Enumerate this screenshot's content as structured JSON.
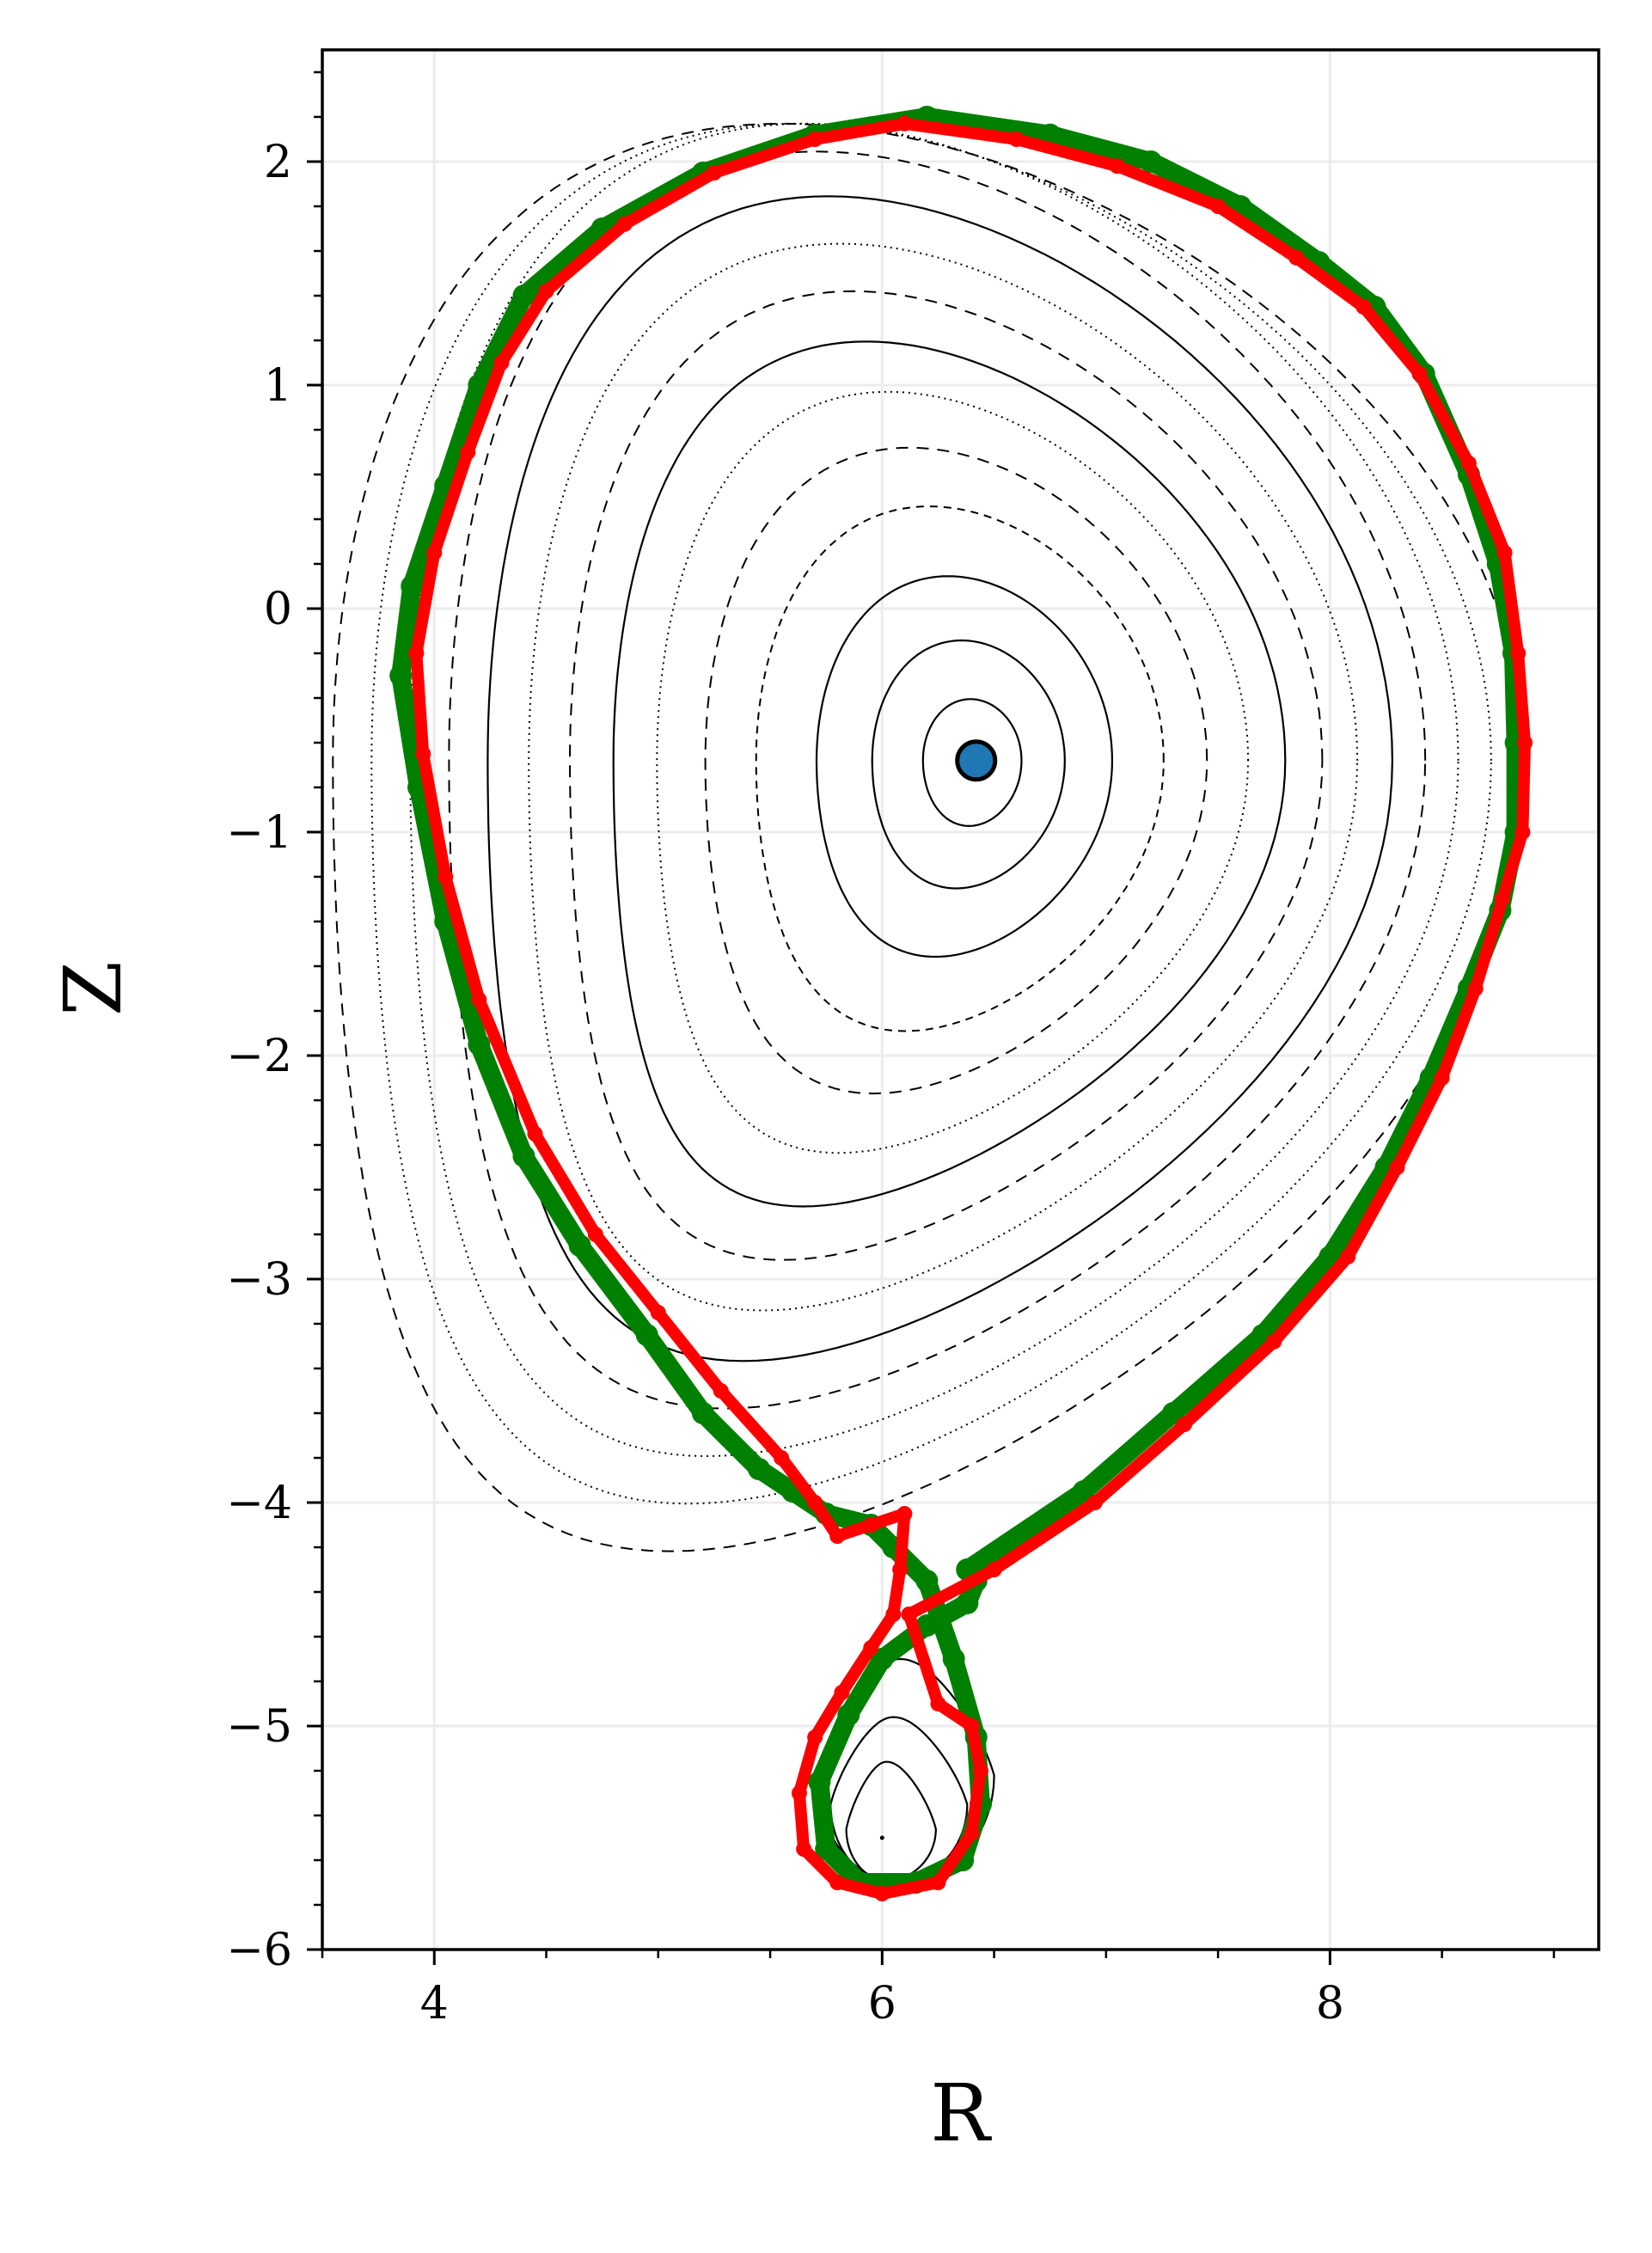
{
  "chart_data": {
    "type": "scatter",
    "title": "",
    "xlabel": "R",
    "ylabel": "Z",
    "xlim": [
      3.5,
      9.2
    ],
    "ylim": [
      -6.0,
      2.5
    ],
    "grid": true,
    "x_ticks": [
      4,
      6,
      8
    ],
    "y_ticks": [
      2,
      1,
      0,
      -1,
      -2,
      -3,
      -4,
      -5,
      -6
    ],
    "x_tick_labels": [
      "4",
      "6",
      "8"
    ],
    "y_tick_labels": [
      "2",
      "1",
      "0",
      "−1",
      "−2",
      "−3",
      "−4",
      "−5",
      "−6"
    ],
    "magnetic_axis": {
      "R": 6.42,
      "Z": -0.68,
      "color": "#1f77b4"
    },
    "main_surfaces": [
      {
        "a": 0.22,
        "style": "solid"
      },
      {
        "a": 0.43,
        "style": "solid"
      },
      {
        "a": 0.66,
        "style": "solid"
      },
      {
        "a": 0.91,
        "style": "dashed-fine"
      },
      {
        "a": 1.12,
        "style": "dashed"
      },
      {
        "a": 1.32,
        "style": "dotted"
      },
      {
        "a": 1.5,
        "style": "solid"
      },
      {
        "a": 1.68,
        "style": "dashed"
      },
      {
        "a": 1.85,
        "style": "dotted"
      },
      {
        "a": 2.02,
        "style": "solid"
      },
      {
        "a": 2.18,
        "style": "dashed"
      },
      {
        "a": 2.34,
        "style": "dotted"
      },
      {
        "a": 2.5,
        "style": "dotted"
      },
      {
        "a": 2.66,
        "style": "dashed"
      }
    ],
    "island_axis": {
      "R": 6.0,
      "Z": -5.5
    },
    "island_surfaces": [
      {
        "R0": 6.02,
        "Z0": -5.46,
        "a_left": 0.18,
        "a_right": 0.22,
        "up": 0.3,
        "down": 0.23
      },
      {
        "R0": 6.05,
        "Z0": -5.35,
        "a_left": 0.28,
        "a_right": 0.33,
        "up": 0.39,
        "down": 0.35
      },
      {
        "R0": 6.08,
        "Z0": -5.22,
        "a_left": 0.37,
        "a_right": 0.42,
        "up": 0.52,
        "down": 0.48
      }
    ],
    "series": [
      {
        "color": "#008000",
        "points": [
          [
            6.38,
            -4.3
          ],
          [
            6.9,
            -3.95
          ],
          [
            7.3,
            -3.6
          ],
          [
            7.7,
            -3.25
          ],
          [
            8.0,
            -2.9
          ],
          [
            8.25,
            -2.5
          ],
          [
            8.45,
            -2.1
          ],
          [
            8.62,
            -1.7
          ],
          [
            8.76,
            -1.35
          ],
          [
            8.83,
            -1.0
          ],
          [
            8.83,
            -0.6
          ],
          [
            8.82,
            -0.2
          ],
          [
            8.75,
            0.2
          ],
          [
            8.62,
            0.6
          ],
          [
            8.42,
            1.05
          ],
          [
            8.2,
            1.35
          ],
          [
            7.95,
            1.55
          ],
          [
            7.6,
            1.8
          ],
          [
            7.2,
            2.0
          ],
          [
            6.75,
            2.12
          ],
          [
            6.2,
            2.2
          ],
          [
            5.7,
            2.12
          ],
          [
            5.2,
            1.95
          ],
          [
            4.75,
            1.7
          ],
          [
            4.4,
            1.4
          ],
          [
            4.2,
            1.0
          ],
          [
            4.05,
            0.55
          ],
          [
            3.9,
            0.1
          ],
          [
            3.85,
            -0.3
          ],
          [
            3.93,
            -0.8
          ],
          [
            4.05,
            -1.4
          ],
          [
            4.2,
            -1.95
          ],
          [
            4.4,
            -2.45
          ],
          [
            4.65,
            -2.85
          ],
          [
            4.95,
            -3.25
          ],
          [
            5.2,
            -3.6
          ],
          [
            5.45,
            -3.85
          ],
          [
            5.6,
            -3.95
          ],
          [
            5.75,
            -4.05
          ],
          [
            5.95,
            -4.1
          ],
          [
            6.05,
            -4.2
          ],
          [
            6.2,
            -4.35
          ],
          [
            6.32,
            -4.7
          ],
          [
            6.42,
            -5.05
          ],
          [
            6.44,
            -5.35
          ],
          [
            6.36,
            -5.6
          ],
          [
            6.15,
            -5.7
          ],
          [
            5.9,
            -5.7
          ],
          [
            5.75,
            -5.55
          ],
          [
            5.72,
            -5.25
          ],
          [
            5.85,
            -4.95
          ],
          [
            6.0,
            -4.7
          ],
          [
            6.2,
            -4.55
          ],
          [
            6.38,
            -4.45
          ],
          [
            6.42,
            -4.35
          ],
          [
            6.38,
            -4.3
          ]
        ]
      },
      {
        "color": "#ff0000",
        "points": [
          [
            6.12,
            -4.5
          ],
          [
            6.5,
            -4.3
          ],
          [
            6.95,
            -4.0
          ],
          [
            7.35,
            -3.65
          ],
          [
            7.75,
            -3.28
          ],
          [
            8.08,
            -2.9
          ],
          [
            8.3,
            -2.5
          ],
          [
            8.5,
            -2.1
          ],
          [
            8.65,
            -1.7
          ],
          [
            8.77,
            -1.3
          ],
          [
            8.86,
            -1.0
          ],
          [
            8.87,
            -0.6
          ],
          [
            8.84,
            -0.2
          ],
          [
            8.78,
            0.25
          ],
          [
            8.62,
            0.65
          ],
          [
            8.4,
            1.05
          ],
          [
            8.15,
            1.35
          ],
          [
            7.85,
            1.57
          ],
          [
            7.5,
            1.8
          ],
          [
            7.05,
            1.98
          ],
          [
            6.6,
            2.1
          ],
          [
            6.1,
            2.17
          ],
          [
            5.7,
            2.1
          ],
          [
            5.25,
            1.95
          ],
          [
            4.85,
            1.72
          ],
          [
            4.5,
            1.42
          ],
          [
            4.3,
            1.1
          ],
          [
            4.15,
            0.7
          ],
          [
            4.0,
            0.25
          ],
          [
            3.92,
            -0.2
          ],
          [
            3.95,
            -0.65
          ],
          [
            4.05,
            -1.2
          ],
          [
            4.2,
            -1.75
          ],
          [
            4.45,
            -2.35
          ],
          [
            4.72,
            -2.8
          ],
          [
            5.0,
            -3.15
          ],
          [
            5.28,
            -3.5
          ],
          [
            5.55,
            -3.8
          ],
          [
            5.7,
            -4.0
          ],
          [
            5.8,
            -4.15
          ],
          [
            5.95,
            -4.1
          ],
          [
            6.1,
            -4.05
          ],
          [
            6.08,
            -4.3
          ],
          [
            6.05,
            -4.5
          ],
          [
            5.95,
            -4.65
          ],
          [
            5.82,
            -4.85
          ],
          [
            5.7,
            -5.05
          ],
          [
            5.63,
            -5.3
          ],
          [
            5.65,
            -5.55
          ],
          [
            5.8,
            -5.7
          ],
          [
            6.0,
            -5.75
          ],
          [
            6.25,
            -5.7
          ],
          [
            6.4,
            -5.48
          ],
          [
            6.44,
            -5.2
          ],
          [
            6.4,
            -5.0
          ],
          [
            6.25,
            -4.9
          ],
          [
            6.12,
            -4.5
          ]
        ]
      }
    ]
  }
}
